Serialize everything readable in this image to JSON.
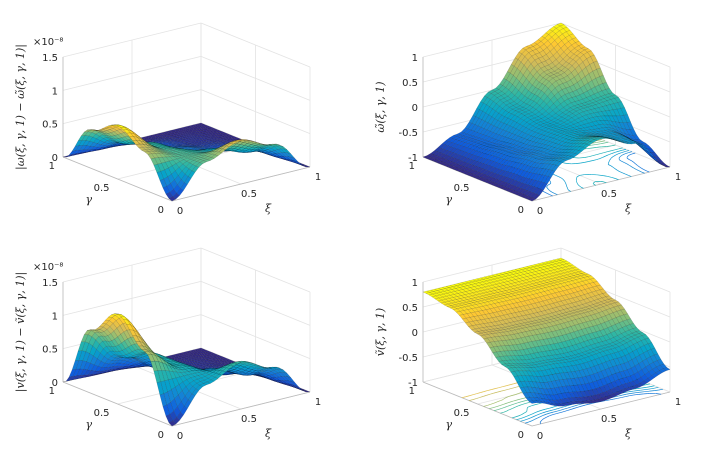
{
  "chart_data": [
    {
      "type": "surface",
      "zlabel": "|ω(ξ, γ, 1) − ω̃(ξ, γ, 1)|",
      "exponent": "×10⁻⁸",
      "xlabel": "ξ",
      "ylabel": "γ",
      "xticks": [
        "0",
        "0.5",
        "1"
      ],
      "yticks": [
        "0",
        "0.5",
        "1"
      ],
      "zticks": [
        "0",
        "0.5",
        "1",
        "1.5"
      ],
      "ztick_values": [
        0,
        0.5,
        1,
        1.5
      ],
      "zlim": [
        0,
        1.5
      ],
      "floor_contours": false,
      "grid_xi": [
        0,
        0.25,
        0.5,
        0.75,
        1
      ],
      "grid_gamma": [
        0,
        0.25,
        0.5,
        0.75,
        1
      ],
      "z": [
        [
          0,
          0.46,
          0.65,
          0.46,
          0
        ],
        [
          0.57,
          0.43,
          0.34,
          0.2,
          0
        ],
        [
          0.8,
          0.4,
          0.18,
          0.07,
          0
        ],
        [
          0.57,
          0.25,
          0.08,
          0.02,
          0
        ],
        [
          0,
          0,
          0,
          0,
          0
        ]
      ]
    },
    {
      "type": "surface",
      "zlabel": "ω̃(ξ, γ, 1)",
      "xlabel": "ξ",
      "ylabel": "γ",
      "xticks": [
        "0",
        "0.5",
        "1"
      ],
      "yticks": [
        "0",
        "0.5",
        "1"
      ],
      "zticks": [
        "-1",
        "-0.5",
        "0",
        "0.5",
        "1"
      ],
      "ztick_values": [
        -1,
        -0.5,
        0,
        0.5,
        1
      ],
      "zlim": [
        -1,
        1
      ],
      "floor_contours": true,
      "grid_xi": [
        0,
        0.25,
        0.5,
        0.75,
        1
      ],
      "grid_gamma": [
        0,
        0.25,
        0.5,
        0.75,
        1
      ],
      "z": [
        [
          -1,
          -0.36,
          -0.1,
          -0.36,
          -1
        ],
        [
          -1,
          -0.5,
          -0.25,
          -0.35,
          -0.71
        ],
        [
          -1,
          -0.6,
          -0.26,
          -0.06,
          0
        ],
        [
          -1,
          -0.67,
          -0.16,
          0.36,
          0.71
        ],
        [
          -1,
          -0.707,
          0,
          0.707,
          1
        ]
      ]
    },
    {
      "type": "surface",
      "zlabel": "|v(ξ, γ, 1) − ṽ(ξ, γ, 1)|",
      "exponent": "×10⁻⁸",
      "xlabel": "ξ",
      "ylabel": "γ",
      "xticks": [
        "0",
        "0.5",
        "1"
      ],
      "yticks": [
        "0",
        "0.5",
        "1"
      ],
      "zticks": [
        "0",
        "0.5",
        "1",
        "1.5"
      ],
      "ztick_values": [
        0,
        0.5,
        1,
        1.5
      ],
      "zlim": [
        0,
        1.5
      ],
      "floor_contours": false,
      "grid_xi": [
        0,
        0.25,
        0.5,
        0.75,
        1
      ],
      "grid_gamma": [
        0,
        0.25,
        0.5,
        0.75,
        1
      ],
      "z": [
        [
          0,
          0.49,
          0.7,
          0.49,
          0
        ],
        [
          0.95,
          0.61,
          0.42,
          0.23,
          0
        ],
        [
          1.35,
          0.63,
          0.26,
          0.08,
          0
        ],
        [
          0.95,
          0.41,
          0.13,
          0.03,
          0
        ],
        [
          0,
          0,
          0,
          0,
          0
        ]
      ]
    },
    {
      "type": "surface",
      "zlabel": "ṽ(ξ, γ, 1)",
      "xlabel": "ξ",
      "ylabel": "γ",
      "xticks": [
        "0",
        "0.5",
        "1"
      ],
      "yticks": [
        "0",
        "0.5",
        "1"
      ],
      "zticks": [
        "-1",
        "-0.5",
        "0",
        "0.5",
        "1"
      ],
      "ztick_values": [
        -1,
        -0.5,
        0,
        0.5,
        1
      ],
      "zlim": [
        -1,
        1
      ],
      "floor_contours": true,
      "grid_xi": [
        0,
        0.25,
        0.5,
        0.75,
        1
      ],
      "grid_gamma": [
        0,
        0.25,
        0.5,
        0.75,
        1
      ],
      "z": [
        [
          -0.55,
          -0.76,
          -0.85,
          -0.76,
          -0.55
        ],
        [
          -0.03,
          -0.15,
          -0.2,
          -0.15,
          -0.03
        ],
        [
          0.4,
          0.35,
          0.33,
          0.35,
          0.4
        ],
        [
          0.7,
          0.69,
          0.68,
          0.69,
          0.7
        ],
        [
          0.8,
          0.8,
          0.8,
          0.8,
          0.8
        ]
      ]
    }
  ],
  "colormap": [
    "#352a87",
    "#0f5cdd",
    "#1481d6",
    "#06a4ca",
    "#2eb7a4",
    "#87bf77",
    "#d1bb59",
    "#fec832",
    "#f9fb0e"
  ]
}
